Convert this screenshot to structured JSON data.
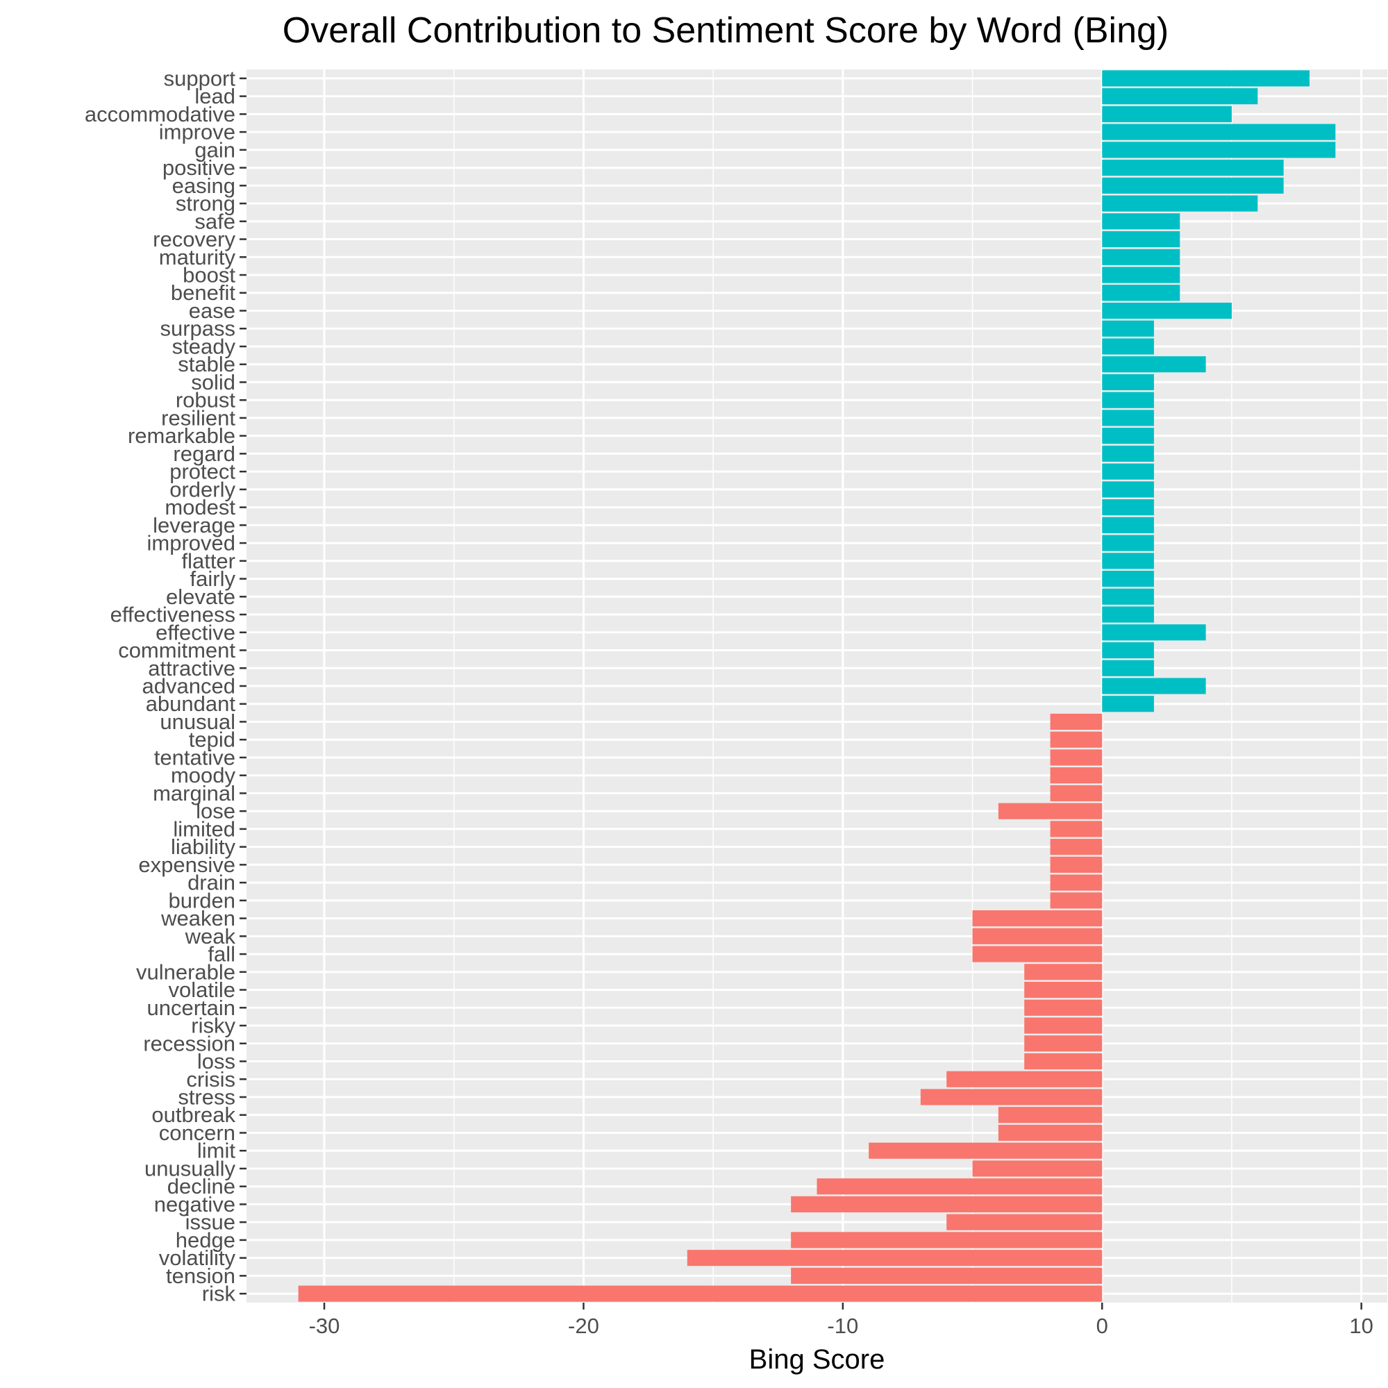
{
  "chart_data": {
    "type": "bar",
    "orientation": "horizontal",
    "title": "Overall Contribution to Sentiment Score by Word (Bing)",
    "xlabel": "Bing Score",
    "ylabel": "",
    "xlim": [
      -33,
      11
    ],
    "x_ticks": [
      -30,
      -20,
      -10,
      0,
      10
    ],
    "grid": true,
    "legend": "none",
    "colors": {
      "positive": "#00BFC4",
      "negative": "#F8766D",
      "panel": "#EBEBEB",
      "grid": "#FFFFFF"
    },
    "categories": [
      "support",
      "lead",
      "accommodative",
      "improve",
      "gain",
      "positive",
      "easing",
      "strong",
      "safe",
      "recovery",
      "maturity",
      "boost",
      "benefit",
      "ease",
      "surpass",
      "steady",
      "stable",
      "solid",
      "robust",
      "resilient",
      "remarkable",
      "regard",
      "protect",
      "orderly",
      "modest",
      "leverage",
      "improved",
      "flatter",
      "fairly",
      "elevate",
      "effectiveness",
      "effective",
      "commitment",
      "attractive",
      "advanced",
      "abundant",
      "unusual",
      "tepid",
      "tentative",
      "moody",
      "marginal",
      "lose",
      "limited",
      "liability",
      "expensive",
      "drain",
      "burden",
      "weaken",
      "weak",
      "fall",
      "vulnerable",
      "volatile",
      "uncertain",
      "risky",
      "recession",
      "loss",
      "crisis",
      "stress",
      "outbreak",
      "concern",
      "limit",
      "unusually",
      "decline",
      "negative",
      "issue",
      "hedge",
      "volatility",
      "tension",
      "risk"
    ],
    "values": [
      8,
      6,
      5,
      9,
      9,
      7,
      7,
      6,
      3,
      3,
      3,
      3,
      3,
      5,
      2,
      2,
      4,
      2,
      2,
      2,
      2,
      2,
      2,
      2,
      2,
      2,
      2,
      2,
      2,
      2,
      2,
      4,
      2,
      2,
      4,
      2,
      -2,
      -2,
      -2,
      -2,
      -2,
      -4,
      -2,
      -2,
      -2,
      -2,
      -2,
      -5,
      -5,
      -5,
      -3,
      -3,
      -3,
      -3,
      -3,
      -3,
      -6,
      -7,
      -4,
      -4,
      -9,
      -5,
      -11,
      -12,
      -6,
      -12,
      -16,
      -12,
      -31
    ]
  }
}
